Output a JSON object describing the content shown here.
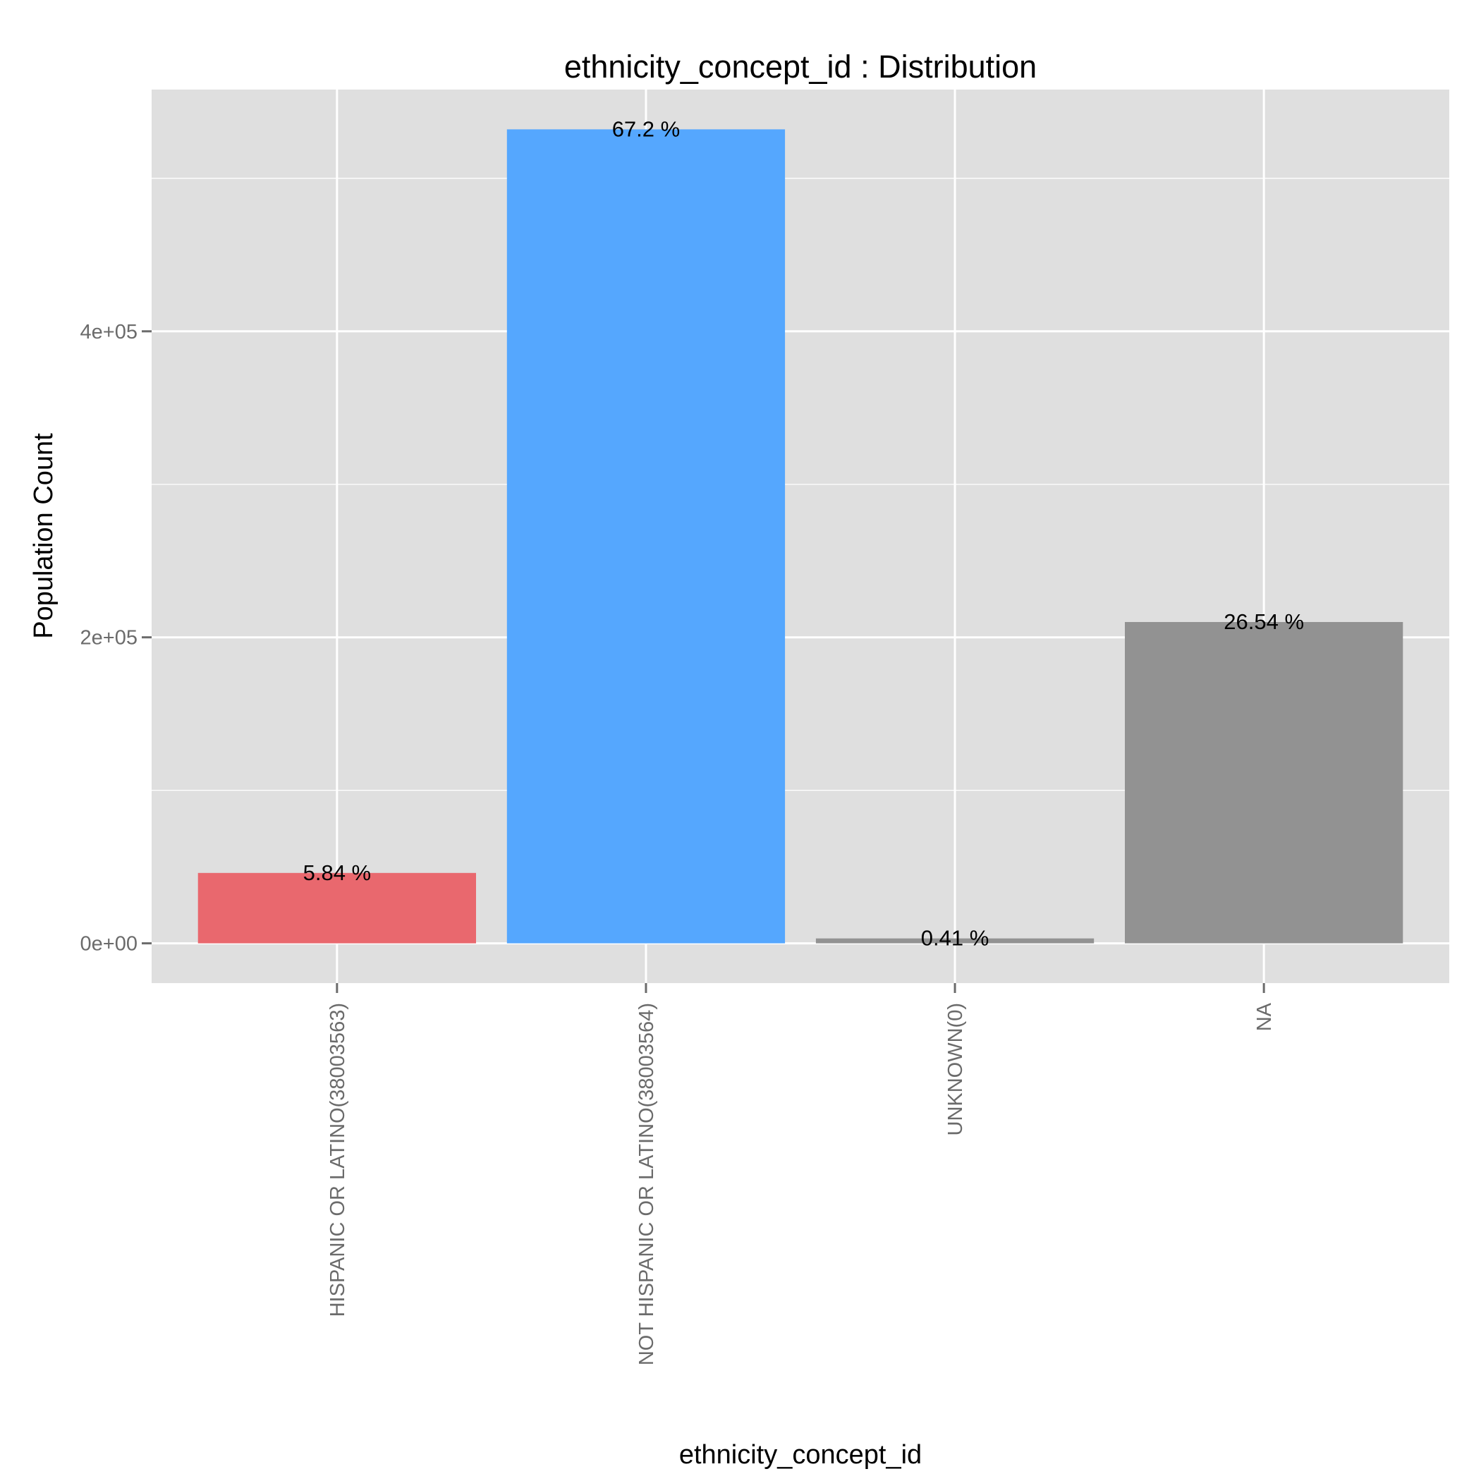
{
  "chart_data": {
    "type": "bar",
    "title": "ethnicity_concept_id : Distribution",
    "xlabel": "ethnicity_concept_id",
    "ylabel": "Population Count",
    "categories": [
      "HISPANIC OR LATINO(38003563)",
      "NOT HISPANIC OR LATINO(38003564)",
      "UNKNOWN(0)",
      "NA"
    ],
    "values": [
      46000,
      532000,
      3200,
      210000
    ],
    "labels": [
      "5.84 %",
      "67.2 %",
      "0.41 %",
      "26.54 %"
    ],
    "colors": [
      "#e9686e",
      "#55a7fe",
      "#929292",
      "#929292"
    ],
    "yticks": [
      {
        "value": 0,
        "label": "0e+00"
      },
      {
        "value": 200000,
        "label": "2e+05"
      },
      {
        "value": 400000,
        "label": "4e+05"
      }
    ],
    "ylim": [
      -26000,
      558000
    ],
    "grid": true,
    "panel_background": "#dfdfdf",
    "grid_color": "#ffffff"
  }
}
